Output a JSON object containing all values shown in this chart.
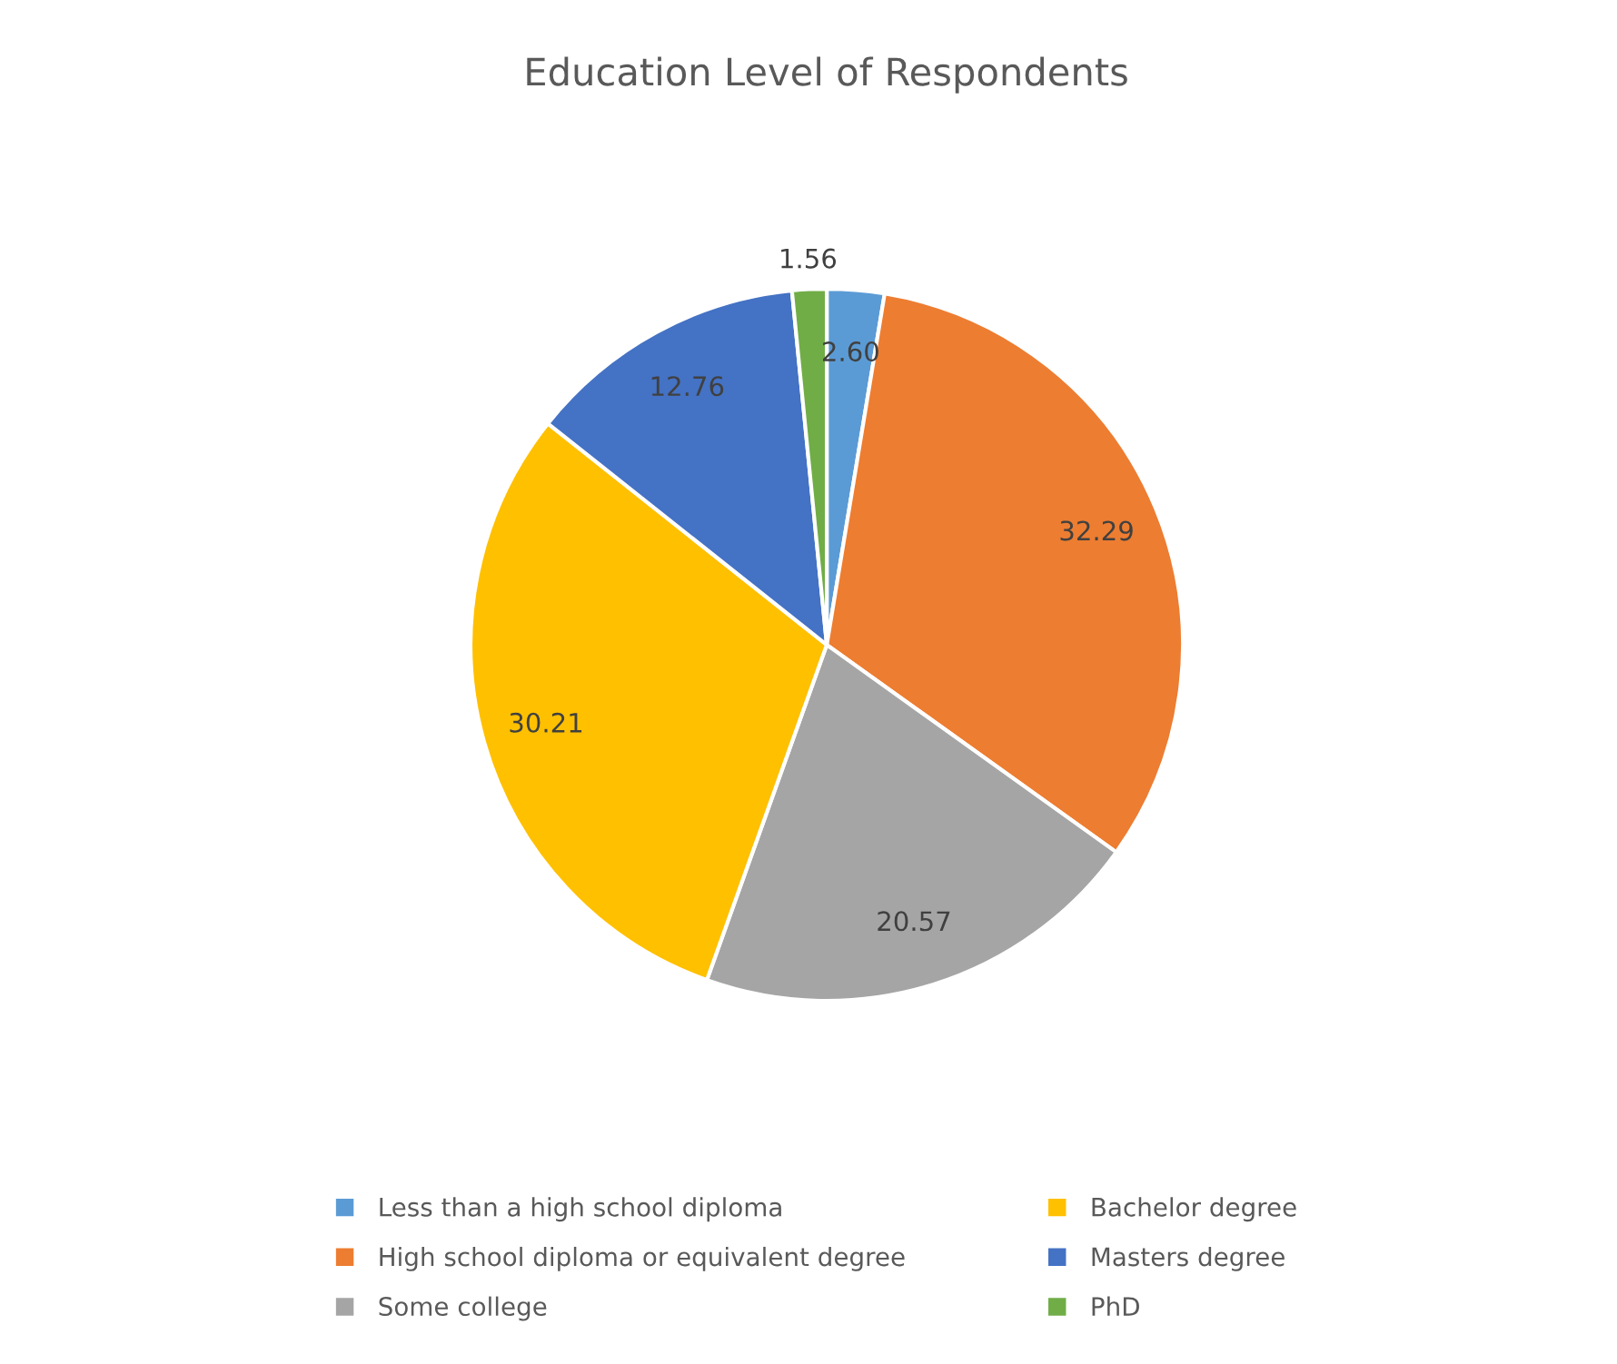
{
  "chart_data": {
    "type": "pie",
    "title": "Education Level of Respondents",
    "categories": [
      "Less than a high school diploma",
      "High school diploma or equivalent degree",
      "Some college",
      "Bachelor degree",
      "Masters degree",
      "PhD"
    ],
    "values": [
      2.6,
      32.29,
      20.57,
      30.21,
      12.76,
      1.56
    ],
    "value_labels": [
      "2.60",
      "32.29",
      "20.57",
      "30.21",
      "12.76",
      "1.56"
    ],
    "colors": [
      "#5b9bd5",
      "#ed7d31",
      "#a5a5a5",
      "#ffc000",
      "#4472c4",
      "#70ad47"
    ],
    "legend": "bottom"
  }
}
